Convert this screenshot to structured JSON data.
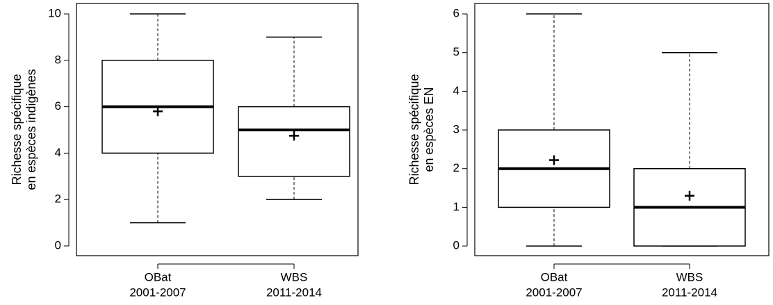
{
  "chart_data": [
    {
      "type": "box",
      "ylabel": [
        "Richesse spécifique",
        "en espèces indigènes"
      ],
      "categories": [
        "OBat",
        "WBS"
      ],
      "category_periods": [
        "2001-2007",
        "2011-2014"
      ],
      "boxes": [
        {
          "min": 1,
          "q1": 4,
          "median": 6,
          "q3": 8,
          "max": 10,
          "mean": 5.8
        },
        {
          "min": 2,
          "q1": 3,
          "median": 5,
          "q3": 6,
          "max": 9,
          "mean": 4.75
        }
      ],
      "ylim": [
        -0.42,
        10.45
      ],
      "yticks": [
        0,
        2,
        4,
        6,
        8,
        10
      ]
    },
    {
      "type": "box",
      "ylabel": [
        "Richesse spécifique",
        "en espèces EN"
      ],
      "categories": [
        "OBat",
        "WBS"
      ],
      "category_periods": [
        "2001-2007",
        "2011-2014"
      ],
      "boxes": [
        {
          "min": 0,
          "q1": 1,
          "median": 2,
          "q3": 3,
          "max": 6,
          "mean": 2.22
        },
        {
          "min": 0,
          "q1": 0,
          "median": 1,
          "q3": 2,
          "max": 5,
          "mean": 1.3
        }
      ],
      "ylim": [
        -0.25,
        6.27
      ],
      "yticks": [
        0,
        1,
        2,
        3,
        4,
        5,
        6
      ]
    }
  ]
}
